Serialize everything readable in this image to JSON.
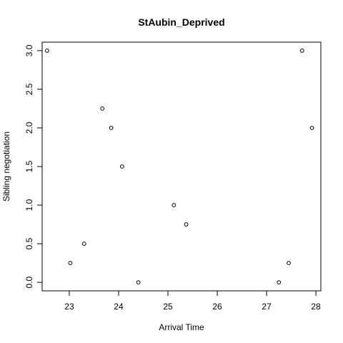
{
  "chart_data": {
    "type": "scatter",
    "title": "StAubin_Deprived",
    "xlabel": "Arrival Time",
    "ylabel": "Sibling negotiation",
    "xlim": [
      22.45,
      28.1
    ],
    "ylim": [
      -0.11,
      3.11
    ],
    "x_ticks": [
      23,
      24,
      25,
      26,
      27,
      28
    ],
    "x_tick_labels": [
      "23",
      "24",
      "25",
      "26",
      "27",
      "28"
    ],
    "y_ticks": [
      0.0,
      0.5,
      1.0,
      1.5,
      2.0,
      2.5,
      3.0
    ],
    "y_tick_labels": [
      "0.0",
      "0.5",
      "1.0",
      "1.5",
      "2.0",
      "2.5",
      "3.0"
    ],
    "grid": false,
    "legend": "none",
    "marker": "open-circle",
    "points": [
      {
        "x": 22.55,
        "y": 3.0
      },
      {
        "x": 23.02,
        "y": 0.25
      },
      {
        "x": 23.3,
        "y": 0.5
      },
      {
        "x": 23.67,
        "y": 2.25
      },
      {
        "x": 23.85,
        "y": 2.0
      },
      {
        "x": 24.07,
        "y": 1.5
      },
      {
        "x": 24.4,
        "y": 0.0
      },
      {
        "x": 25.12,
        "y": 1.0
      },
      {
        "x": 25.37,
        "y": 0.75
      },
      {
        "x": 27.25,
        "y": 0.0
      },
      {
        "x": 27.45,
        "y": 0.25
      },
      {
        "x": 27.72,
        "y": 3.0
      },
      {
        "x": 27.92,
        "y": 2.0
      }
    ],
    "colors": {
      "axis": "#000000",
      "marker": "#000000",
      "background": "#ffffff"
    }
  }
}
